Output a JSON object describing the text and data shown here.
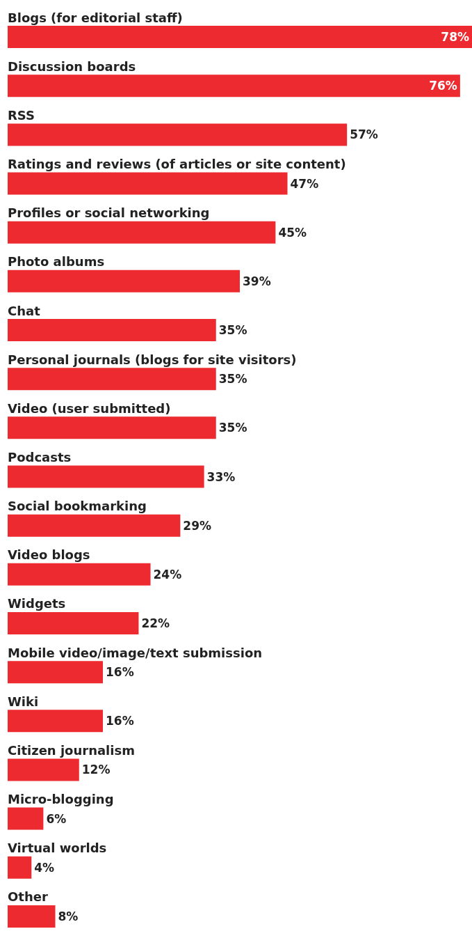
{
  "chart_data": {
    "type": "bar",
    "orientation": "horizontal",
    "categories": [
      "Blogs (for editorial staff)",
      "Discussion boards",
      "RSS",
      "Ratings and reviews (of articles or site content)",
      "Profiles or social networking",
      "Photo albums",
      "Chat",
      "Personal journals (blogs for site visitors)",
      "Video (user submitted)",
      "Podcasts",
      "Social bookmarking",
      "Video blogs",
      "Widgets",
      "Mobile video/image/text submission",
      "Wiki",
      "Citizen journalism",
      "Micro-blogging",
      "Virtual worlds",
      "Other"
    ],
    "values": [
      78,
      76,
      57,
      47,
      45,
      39,
      35,
      35,
      35,
      33,
      29,
      24,
      22,
      16,
      16,
      12,
      6,
      4,
      8
    ],
    "value_labels": [
      "78%",
      "76%",
      "57%",
      "47%",
      "45%",
      "39%",
      "35%",
      "35%",
      "35%",
      "33%",
      "29%",
      "24%",
      "22%",
      "16%",
      "16%",
      "12%",
      "6%",
      "4%",
      "8%"
    ],
    "color": "#ec2a2f",
    "xlim": [
      0,
      78
    ]
  }
}
